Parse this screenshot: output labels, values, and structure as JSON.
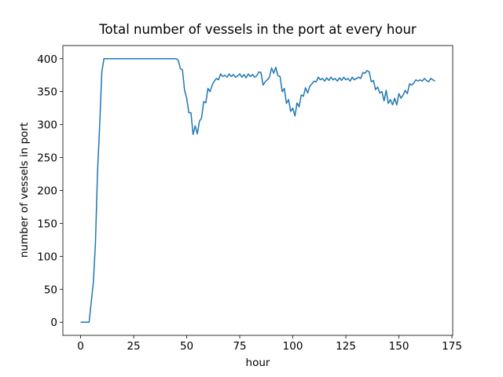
{
  "chart_data": {
    "type": "line",
    "title": "Total number of vessels in the port at every hour",
    "xlabel": "hour",
    "ylabel": "number of vessels in port",
    "x": [
      0,
      1,
      2,
      3,
      4,
      5,
      6,
      7,
      8,
      9,
      10,
      11,
      12,
      13,
      14,
      15,
      16,
      17,
      18,
      19,
      20,
      21,
      22,
      23,
      24,
      25,
      26,
      27,
      28,
      29,
      30,
      31,
      32,
      33,
      34,
      35,
      36,
      37,
      38,
      39,
      40,
      41,
      42,
      43,
      44,
      45,
      46,
      47,
      48,
      49,
      50,
      51,
      52,
      53,
      54,
      55,
      56,
      57,
      58,
      59,
      60,
      61,
      62,
      63,
      64,
      65,
      66,
      67,
      68,
      69,
      70,
      71,
      72,
      73,
      74,
      75,
      76,
      77,
      78,
      79,
      80,
      81,
      82,
      83,
      84,
      85,
      86,
      87,
      88,
      89,
      90,
      91,
      92,
      93,
      94,
      95,
      96,
      97,
      98,
      99,
      100,
      101,
      102,
      103,
      104,
      105,
      106,
      107,
      108,
      109,
      110,
      111,
      112,
      113,
      114,
      115,
      116,
      117,
      118,
      119,
      120,
      121,
      122,
      123,
      124,
      125,
      126,
      127,
      128,
      129,
      130,
      131,
      132,
      133,
      134,
      135,
      136,
      137,
      138,
      139,
      140,
      141,
      142,
      143,
      144,
      145,
      146,
      147,
      148,
      149,
      150,
      151,
      152,
      153,
      154,
      155,
      156,
      157,
      158,
      159,
      160,
      161,
      162,
      163,
      164,
      165,
      166,
      167
    ],
    "series": [
      {
        "color": "#1f77b4",
        "values": [
          0,
          0,
          0,
          0,
          0,
          30,
          60,
          120,
          230,
          300,
          380,
          400,
          400,
          400,
          400,
          400,
          400,
          400,
          400,
          400,
          400,
          400,
          400,
          400,
          400,
          400,
          400,
          400,
          400,
          400,
          400,
          400,
          400,
          400,
          400,
          400,
          400,
          400,
          400,
          400,
          400,
          400,
          400,
          400,
          400,
          400,
          398,
          385,
          383,
          352,
          340,
          318,
          318,
          285,
          298,
          286,
          305,
          310,
          335,
          333,
          355,
          350,
          360,
          366,
          370,
          368,
          377,
          373,
          375,
          372,
          377,
          373,
          376,
          372,
          374,
          377,
          372,
          376,
          371,
          377,
          373,
          376,
          372,
          374,
          380,
          379,
          360,
          365,
          368,
          372,
          386,
          378,
          387,
          374,
          373,
          350,
          355,
          332,
          338,
          320,
          325,
          313,
          333,
          327,
          345,
          343,
          356,
          348,
          358,
          362,
          366,
          365,
          372,
          368,
          370,
          366,
          371,
          367,
          372,
          368,
          370,
          366,
          371,
          367,
          372,
          368,
          370,
          366,
          372,
          368,
          370,
          372,
          370,
          379,
          378,
          382,
          380,
          365,
          367,
          353,
          357,
          348,
          350,
          336,
          352,
          332,
          338,
          330,
          340,
          330,
          347,
          340,
          345,
          352,
          347,
          362,
          360,
          363,
          368,
          366,
          368,
          366,
          370,
          367,
          365,
          370,
          368,
          366
        ]
      }
    ],
    "xlim": [
      -8.35,
      175.35
    ],
    "xticks": [
      0,
      25,
      50,
      75,
      100,
      125,
      150,
      175
    ],
    "ylim": [
      -20,
      420
    ],
    "yticks": [
      0,
      50,
      100,
      150,
      200,
      250,
      300,
      350,
      400
    ],
    "grid": false
  }
}
